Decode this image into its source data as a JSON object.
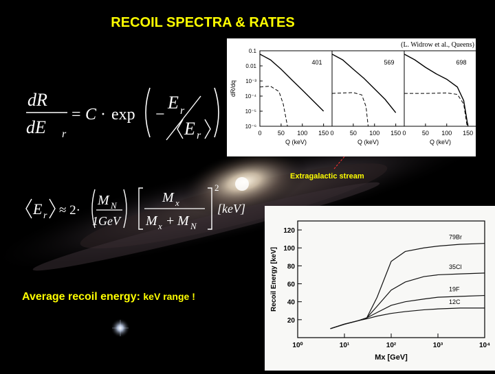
{
  "title": "RECOIL SPECTRA & RATES",
  "equation1": {
    "lhs_num": "dR",
    "lhs_den": "dE",
    "lhs_den_sub": "r",
    "equals": "=",
    "C": "C",
    "dot": "·",
    "exp": "exp",
    "minus": "−",
    "E": "E",
    "sub_r": "r"
  },
  "equation2": {
    "E": "E",
    "sub_r": "r",
    "approx": "≈ 2·",
    "MN": "M",
    "sub_N": "N",
    "oneGeV": "1GeV",
    "Mx": "M",
    "sub_x": "x",
    "plus": "+",
    "power": "2",
    "unit": "[keV]"
  },
  "avg_text": "Average recoil energy:",
  "avg_range": "keV range !",
  "stream_label": "Extragalactic stream",
  "citation": "(L. Widrow et al., Queens)",
  "chart_data": [
    {
      "type": "line",
      "panels": [
        {
          "label": "401",
          "series": [
            {
              "x": [
                0,
                25,
                50,
                75,
                100,
                125,
                150
              ],
              "values": [
                0.06,
                0.025,
                0.006,
                0.0012,
                0.00025,
                5e-05,
                1e-05
              ]
            },
            {
              "x": [
                0,
                25,
                45,
                55,
                65
              ],
              "values": [
                0.0004,
                0.00045,
                0.0002,
                3e-05,
                1e-06
              ]
            }
          ]
        },
        {
          "label": "569",
          "series": [
            {
              "x": [
                0,
                25,
                50,
                75,
                100,
                125,
                150
              ],
              "values": [
                0.06,
                0.025,
                0.006,
                0.0015,
                0.0003,
                6e-05,
                8e-06
              ]
            },
            {
              "x": [
                0,
                25,
                50,
                70,
                80,
                85
              ],
              "values": [
                0.00015,
                0.00016,
                0.00017,
                0.00012,
                2e-05,
                1e-06
              ]
            }
          ]
        },
        {
          "label": "698",
          "series": [
            {
              "x": [
                0,
                25,
                50,
                75,
                100,
                125,
                140,
                150
              ],
              "values": [
                0.06,
                0.025,
                0.008,
                0.003,
                0.0013,
                0.0004,
                5e-05,
                1e-06
              ]
            },
            {
              "x": [
                0,
                50,
                100,
                125,
                140,
                148
              ],
              "values": [
                0.00015,
                0.00015,
                0.00016,
                0.00013,
                3e-05,
                1e-06
              ]
            }
          ]
        }
      ],
      "ylabel": "dR/dq",
      "xlabel": "Q (keV)",
      "y_ticks": [
        "0.1",
        "0.01",
        "10⁻³",
        "10⁻⁴",
        "10⁻⁵",
        "10⁻⁶"
      ],
      "x_ticks": [
        "0",
        "50",
        "100",
        "150"
      ],
      "xlim": [
        0,
        170
      ],
      "ylim": [
        1e-06,
        0.1
      ],
      "yscale": "log"
    },
    {
      "type": "line",
      "xlabel": "Mx [GeV]",
      "ylabel": "Recoil Energy [keV]",
      "x_ticks": [
        "10⁰",
        "10¹",
        "10²",
        "10³",
        "10⁴"
      ],
      "y_ticks": [
        "20",
        "40",
        "60",
        "80",
        "100",
        "120"
      ],
      "xlim": [
        1,
        10000
      ],
      "ylim": [
        0,
        130
      ],
      "xscale": "log",
      "series": [
        {
          "label": "79Br",
          "x": [
            5,
            10,
            20,
            30,
            50,
            100,
            200,
            500,
            1000,
            3000,
            10000
          ],
          "values": [
            10,
            15,
            19,
            22,
            45,
            85,
            96,
            100,
            102,
            104,
            105
          ]
        },
        {
          "label": "35Cl",
          "x": [
            5,
            10,
            20,
            30,
            50,
            100,
            200,
            500,
            1000,
            3000,
            10000
          ],
          "values": [
            10,
            15,
            19,
            22,
            35,
            53,
            62,
            68,
            70,
            71,
            72
          ]
        },
        {
          "label": "19F",
          "x": [
            5,
            10,
            20,
            30,
            50,
            100,
            200,
            500,
            1000,
            3000,
            10000
          ],
          "values": [
            10,
            15,
            19,
            22,
            28,
            36,
            40,
            43,
            45,
            46,
            47
          ]
        },
        {
          "label": "12C",
          "x": [
            5,
            10,
            20,
            30,
            50,
            100,
            200,
            500,
            1000,
            3000,
            10000
          ],
          "values": [
            10,
            15,
            19,
            21,
            24,
            27,
            29,
            31,
            32,
            33,
            33
          ]
        }
      ]
    }
  ]
}
